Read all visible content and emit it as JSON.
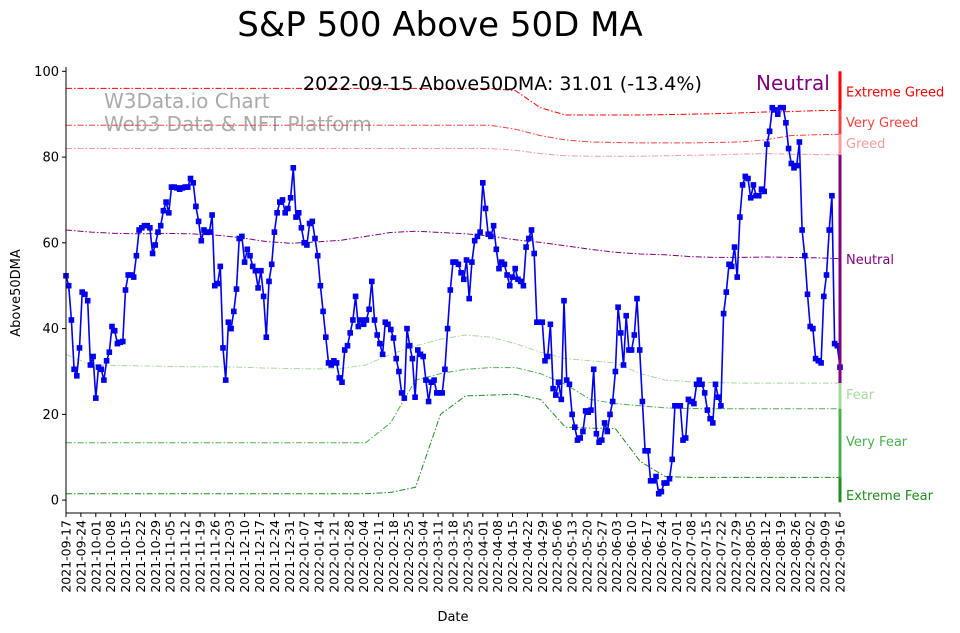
{
  "chart_data": {
    "type": "line",
    "title": "S&P 500 Above 50D MA",
    "xlabel": "Date",
    "ylabel": "Above50DMA",
    "ylim": [
      -3,
      101
    ],
    "yticks": [
      0,
      20,
      40,
      60,
      80,
      100
    ],
    "annotation": "2022-09-15 Above50DMA: 31.01 (-13.4%)",
    "status": "Neutral",
    "watermark": [
      "W3Data.io Chart",
      "Web3 Data & NFT Platform"
    ],
    "x_tick_labels": [
      "2021-09-17",
      "2021-09-24",
      "2021-10-01",
      "2021-10-08",
      "2021-10-15",
      "2021-10-22",
      "2021-10-29",
      "2021-11-05",
      "2021-11-12",
      "2021-11-19",
      "2021-11-26",
      "2021-12-03",
      "2021-12-10",
      "2021-12-17",
      "2021-12-24",
      "2021-12-31",
      "2022-01-07",
      "2022-01-14",
      "2022-01-21",
      "2022-01-28",
      "2022-02-04",
      "2022-02-11",
      "2022-02-18",
      "2022-02-25",
      "2022-03-04",
      "2022-03-11",
      "2022-03-18",
      "2022-03-25",
      "2022-04-01",
      "2022-04-08",
      "2022-04-15",
      "2022-04-22",
      "2022-04-29",
      "2022-05-06",
      "2022-05-13",
      "2022-05-20",
      "2022-05-27",
      "2022-06-03",
      "2022-06-10",
      "2022-06-17",
      "2022-06-24",
      "2022-07-01",
      "2022-07-08",
      "2022-07-15",
      "2022-07-22",
      "2022-07-29",
      "2022-08-05",
      "2022-08-12",
      "2022-08-19",
      "2022-08-26",
      "2022-09-02",
      "2022-09-09",
      "2022-09-16"
    ],
    "series": [
      {
        "name": "Above50DMA",
        "color": "#0000ee",
        "marker": "square",
        "values": [
          52.3,
          50,
          42,
          30.5,
          29,
          35.5,
          48.5,
          48,
          46.5,
          31.5,
          33.5,
          23.8,
          31,
          30.5,
          28,
          32.5,
          34.5,
          40.5,
          39.5,
          36.5,
          36.8,
          37,
          49,
          52.5,
          52.5,
          52,
          57,
          63,
          63.5,
          64,
          64,
          63.5,
          57.5,
          59.5,
          62.5,
          64,
          67.5,
          69.5,
          67,
          73,
          73,
          72.8,
          72.5,
          72.8,
          73,
          73,
          75,
          74,
          68.5,
          65,
          60.5,
          63,
          62.5,
          62.5,
          66.5,
          50,
          50.5,
          54.5,
          35.5,
          28,
          41.5,
          40,
          44,
          49.2,
          61,
          61.5,
          55.5,
          58.5,
          57,
          54.5,
          53.5,
          49.5,
          53.5,
          47.5,
          38,
          51,
          55,
          62.5,
          67,
          69.5,
          70,
          67,
          68,
          70.5,
          77.5,
          66,
          67,
          63.5,
          60,
          59.5,
          64.5,
          65,
          61,
          57,
          50,
          44,
          38,
          32,
          31.5,
          32.5,
          32,
          28.5,
          27.5,
          35,
          36,
          39,
          42,
          47.5,
          40.5,
          42,
          41,
          42,
          44.5,
          51,
          42,
          38.5,
          36.5,
          34,
          41.5,
          41,
          39.8,
          37.8,
          33,
          30,
          25,
          23.8,
          40,
          36,
          33,
          24,
          35,
          34,
          33.5,
          28,
          23,
          27.5,
          28,
          25,
          25,
          25,
          30.5,
          40,
          49,
          55.5,
          55.5,
          55,
          53,
          51.5,
          56,
          47,
          55.5,
          60.5,
          61.5,
          62.5,
          74,
          68,
          62,
          61.5,
          64,
          58.5,
          54,
          55.5,
          55,
          52.5,
          50,
          52,
          54,
          51.5,
          51,
          50,
          59,
          61,
          63,
          57.5,
          41.5,
          41.5,
          41.5,
          32.5,
          33.5,
          41,
          26,
          24.5,
          27.5,
          23.5,
          46.5,
          28,
          27,
          20,
          17,
          14,
          14.5,
          16,
          20.8,
          20.5,
          21,
          30.5,
          15.5,
          13.5,
          14,
          18,
          16,
          20,
          23,
          30,
          45,
          39,
          31.5,
          43,
          35,
          35,
          38.5,
          47,
          35,
          23,
          11.5,
          11.5,
          4.5,
          4.5,
          5.5,
          1.5,
          2,
          4,
          4,
          5,
          9.5,
          22,
          22,
          22,
          14,
          14.5,
          23.5,
          23,
          22.5,
          27,
          28,
          27,
          25,
          21,
          19,
          18,
          27,
          24,
          22,
          43.5,
          48.5,
          55,
          54.5,
          59,
          52,
          66,
          73.5,
          75.5,
          75,
          70.5,
          73.5,
          71,
          71,
          72.5,
          72,
          83,
          86,
          91.5,
          91,
          90,
          91.5,
          91.5,
          88,
          82,
          78.5,
          77.5,
          78,
          83.5,
          63,
          57,
          48,
          40.5,
          40,
          33,
          32.5,
          32,
          47.5,
          52.5,
          63,
          71,
          36.5,
          36,
          31
        ]
      },
      {
        "name": "Extreme Greed",
        "color": "#ff0000",
        "values": [
          96,
          96,
          96,
          96,
          96,
          96,
          96,
          96,
          96,
          96,
          96,
          96,
          96,
          96,
          96,
          96,
          96,
          96,
          95.5,
          91.5,
          89.8,
          89.8,
          89.8,
          89.8,
          89.9,
          90,
          90.1,
          90.3,
          90.5,
          90.6,
          90.8,
          90.9
        ]
      },
      {
        "name": "Very Greed",
        "color": "#f04040",
        "values": [
          87.4,
          87.4,
          87.4,
          87.4,
          87.4,
          87.4,
          87.4,
          87.4,
          87.4,
          87.4,
          87.4,
          87.4,
          87.4,
          87.4,
          87.4,
          87.4,
          87.4,
          87.4,
          86.5,
          85,
          84,
          83.5,
          83.4,
          83.3,
          83.3,
          83.3,
          83.4,
          83.5,
          84,
          85,
          85.2,
          85.3
        ]
      },
      {
        "name": "Greed",
        "color": "#f59a9a",
        "values": [
          82,
          82,
          82,
          82,
          82,
          82,
          82,
          82,
          82,
          82,
          82,
          82,
          82,
          82,
          82,
          82,
          82,
          82,
          81.6,
          80.8,
          80.3,
          80.2,
          80.2,
          80.2,
          80.3,
          80.4,
          80.5,
          80.7,
          80.8,
          80.7,
          80.6,
          80.5
        ]
      },
      {
        "name": "Neutral",
        "color": "#800080",
        "values": [
          63,
          62.5,
          62.2,
          62.1,
          62.2,
          62.1,
          61.8,
          61.2,
          60.3,
          59.9,
          60.2,
          60.6,
          61.5,
          62.4,
          62.7,
          62.4,
          62.1,
          61.6,
          60.7,
          60.1,
          59.3,
          58.5,
          57.8,
          57.4,
          57.2,
          56.8,
          56.6,
          56.6,
          56.7,
          56.6,
          56.5,
          56.3
        ]
      },
      {
        "name": "Fear",
        "color": "#a8d8a0",
        "values": [
          34,
          31.5,
          31.4,
          31.3,
          31.2,
          31.1,
          31.1,
          31,
          30.8,
          30.7,
          30.6,
          30.7,
          31.5,
          34,
          36,
          37.5,
          38.5,
          38,
          36.5,
          34.5,
          33,
          32.5,
          32,
          29.5,
          28,
          27.6,
          27.4,
          27.3,
          27.3,
          27.3,
          27.3,
          27.3
        ]
      },
      {
        "name": "Very Fear",
        "color": "#4caf50",
        "values": [
          13.4,
          13.4,
          13.4,
          13.4,
          13.4,
          13.4,
          13.4,
          13.4,
          13.4,
          13.4,
          13.4,
          13.4,
          13.4,
          18,
          28,
          29.5,
          30.5,
          30.9,
          30.9,
          29.5,
          27,
          23.5,
          22.5,
          22,
          21.5,
          21.4,
          21.3,
          21.3,
          21.3,
          21.3,
          21.3,
          21.3
        ]
      },
      {
        "name": "Extreme Fear",
        "color": "#1e8c1e",
        "values": [
          1.5,
          1.5,
          1.5,
          1.5,
          1.5,
          1.5,
          1.5,
          1.5,
          1.5,
          1.5,
          1.5,
          1.5,
          1.5,
          1.8,
          3,
          20,
          24.3,
          24.5,
          24.7,
          23.5,
          17,
          16.8,
          16.7,
          9,
          5.5,
          5.3,
          5.3,
          5.3,
          5.3,
          5.3,
          5.3,
          5.3
        ]
      }
    ],
    "zones": [
      {
        "label": "Extreme Greed",
        "color": "#ff0000",
        "from": 100,
        "to": 91
      },
      {
        "label": "Very Greed",
        "color": "#f04040",
        "from": 91,
        "to": 85.3
      },
      {
        "label": "Greed",
        "color": "#f59a9a",
        "from": 85.3,
        "to": 80.5
      },
      {
        "label": "Neutral",
        "color": "#800080",
        "from": 80.5,
        "to": 27.3
      },
      {
        "label": "Fear",
        "color": "#a8d8a0",
        "from": 27.3,
        "to": 21.3
      },
      {
        "label": "Very Fear",
        "color": "#4caf50",
        "from": 21.3,
        "to": 5.3
      },
      {
        "label": "Extreme Fear",
        "color": "#1e8c1e",
        "from": 5.3,
        "to": -0.5
      }
    ],
    "zone_labels": [
      {
        "label": "Extreme Greed",
        "value": 95,
        "color": "#ff0000"
      },
      {
        "label": "Very Greed",
        "value": 88,
        "color": "#f04040"
      },
      {
        "label": "Greed",
        "value": 83,
        "color": "#f59a9a"
      },
      {
        "label": "Neutral",
        "value": 56,
        "color": "#800080"
      },
      {
        "label": "Fear",
        "value": 24.5,
        "color": "#a8d8a0"
      },
      {
        "label": "Very Fear",
        "value": 13.5,
        "color": "#4caf50"
      },
      {
        "label": "Extreme Fear",
        "value": 1,
        "color": "#1e8c1e"
      }
    ],
    "grid": false
  }
}
